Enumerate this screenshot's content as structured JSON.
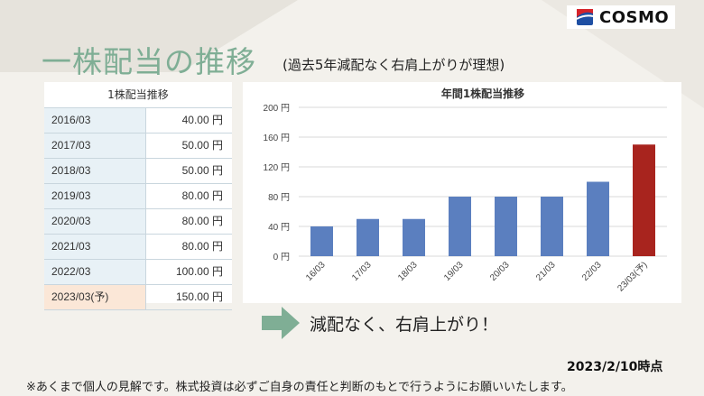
{
  "logo": {
    "text": "COSMO",
    "colors": [
      "#d6232a",
      "#1f4fa3"
    ]
  },
  "header": {
    "title": "一株配当の推移",
    "subtitle": "(過去5年減配なく右肩上がりが理想)"
  },
  "table": {
    "title": "1株配当推移",
    "rows": [
      {
        "year": "2016/03",
        "amount": "40.00 円"
      },
      {
        "year": "2017/03",
        "amount": "50.00 円"
      },
      {
        "year": "2018/03",
        "amount": "50.00 円"
      },
      {
        "year": "2019/03",
        "amount": "80.00 円"
      },
      {
        "year": "2020/03",
        "amount": "80.00 円"
      },
      {
        "year": "2021/03",
        "amount": "80.00 円"
      },
      {
        "year": "2022/03",
        "amount": "100.00 円"
      },
      {
        "year": "2023/03(予)",
        "amount": "150.00 円"
      }
    ]
  },
  "chart_data": {
    "type": "bar",
    "title": "年間1株配当推移",
    "categories": [
      "16/03",
      "17/03",
      "18/03",
      "19/03",
      "20/03",
      "21/03",
      "22/03",
      "23/03(予)"
    ],
    "values": [
      40,
      50,
      50,
      80,
      80,
      80,
      100,
      150
    ],
    "ylim": [
      0,
      200
    ],
    "yticks": [
      0,
      40,
      80,
      120,
      160,
      200
    ],
    "ytick_labels": [
      "0 円",
      "40 円",
      "80 円",
      "120 円",
      "160 円",
      "200 円"
    ],
    "colors": {
      "actual": "#5b7fbf",
      "forecast": "#a8241e"
    },
    "grid": true
  },
  "summary": {
    "text": "減配なく、右肩上がり！"
  },
  "date_note": "2023/2/10時点",
  "disclaimer": "※あくまで個人の見解です。株式投資は必ずご自身の責任と判断のもとで行うようにお願いいたします。"
}
